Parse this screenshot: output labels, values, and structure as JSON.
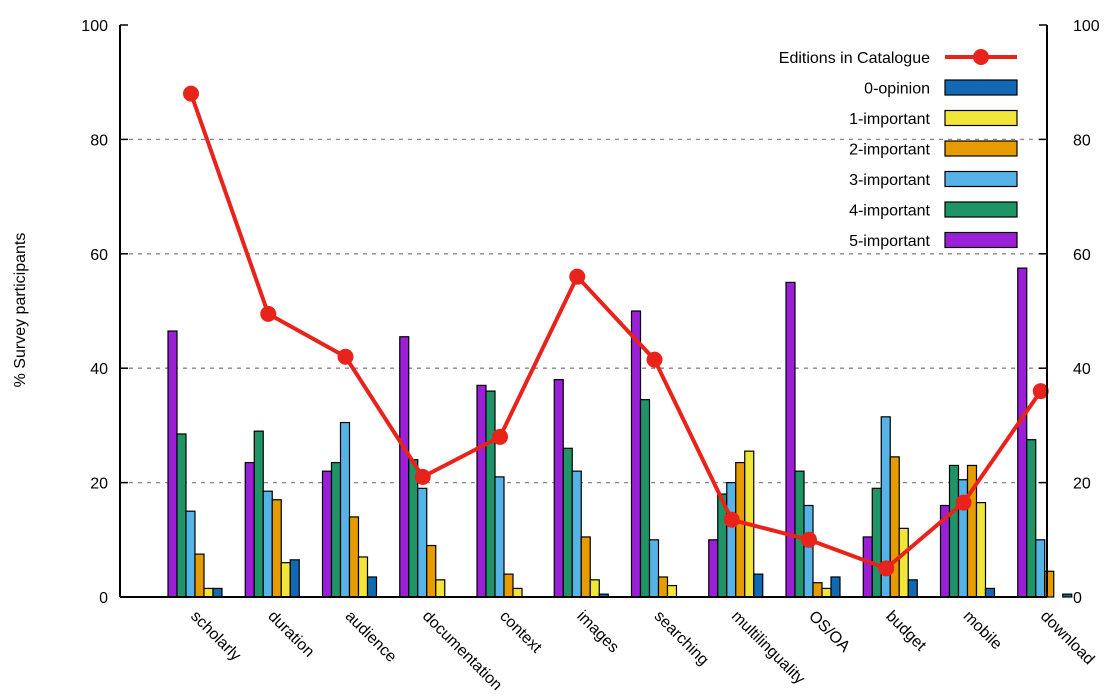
{
  "chart_data": {
    "type": "bar",
    "ylabel": "% Survey participants",
    "ylim": [
      0,
      100
    ],
    "y2lim": [
      0,
      100
    ],
    "yticks": [
      "0",
      "20",
      "40",
      "60",
      "80",
      "100"
    ],
    "y2ticks": [
      "0",
      "20",
      "40",
      "60",
      "80",
      "100"
    ],
    "grid": "dashed horizontal at 20, 40, 60, 80",
    "legend_position": "top-right",
    "categories": [
      "scholarly",
      "duration",
      "audience",
      "documentation",
      "context",
      "images",
      "searching",
      "multilinguality",
      "OS/OA",
      "budget",
      "mobile",
      "download"
    ],
    "series": [
      {
        "name": "5-important",
        "color": "#9b1fd6",
        "values": [
          46.5,
          23.5,
          22,
          45.5,
          37,
          38,
          50,
          10,
          55,
          10.5,
          16,
          57.5
        ]
      },
      {
        "name": "4-important",
        "color": "#1e9467",
        "values": [
          28.5,
          29,
          23.5,
          24,
          36,
          26,
          34.5,
          18,
          22,
          19,
          23,
          27.5
        ]
      },
      {
        "name": "3-important",
        "color": "#55b3e8",
        "values": [
          15,
          18.5,
          30.5,
          19,
          21,
          22,
          10,
          20,
          16,
          31.5,
          20.5,
          10
        ]
      },
      {
        "name": "2-important",
        "color": "#e69c00",
        "values": [
          7.5,
          17,
          14,
          9,
          4,
          10.5,
          3.5,
          23.5,
          2.5,
          24.5,
          23,
          4.5
        ]
      },
      {
        "name": "1-important",
        "color": "#f2e53a",
        "values": [
          1.5,
          6,
          7,
          3,
          1.5,
          3,
          2,
          25.5,
          1.5,
          12,
          16.5,
          0
        ]
      },
      {
        "name": "0-opinion",
        "color": "#1269b3",
        "values": [
          1.5,
          6.5,
          3.5,
          0,
          0,
          0.5,
          0,
          4,
          3.5,
          3,
          1.5,
          0.5
        ]
      }
    ],
    "line_series": {
      "name": "Editions in Catalogue",
      "color": "#e8231b",
      "values": [
        88,
        49.5,
        42,
        21,
        28,
        56,
        41.5,
        13.5,
        10,
        5,
        16.5,
        36
      ]
    },
    "legend": [
      "Editions in Catalogue",
      "0-opinion",
      "1-important",
      "2-important",
      "3-important",
      "4-important",
      "5-important"
    ]
  }
}
